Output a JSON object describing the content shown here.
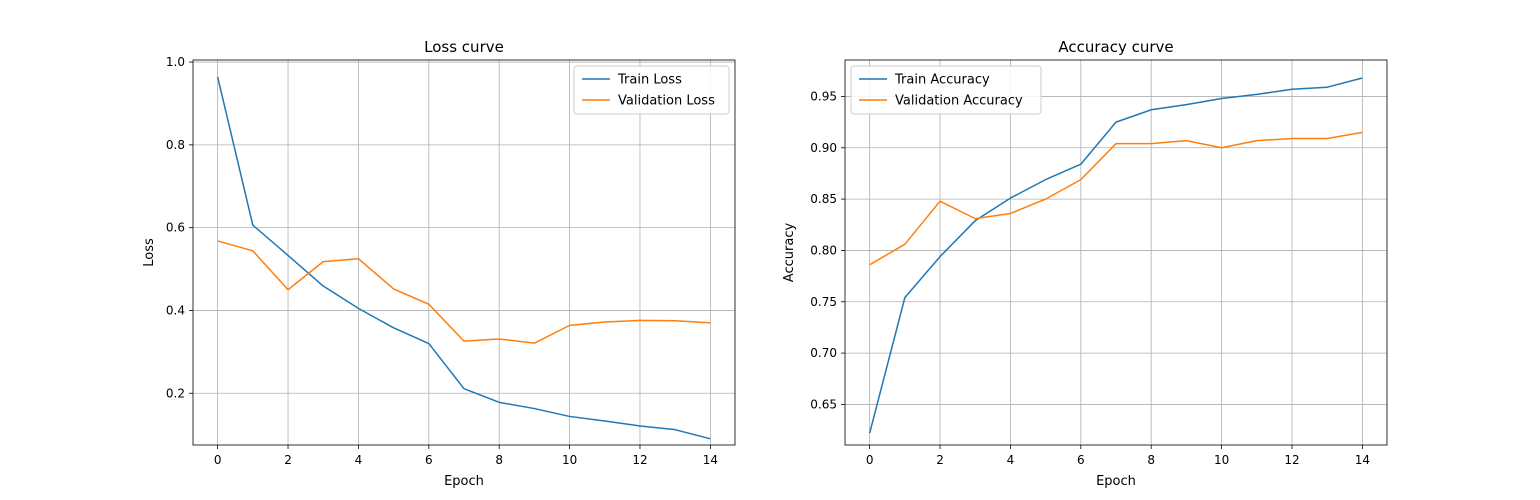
{
  "chart_data": [
    {
      "type": "line",
      "title": "Loss curve",
      "xlabel": "Epoch",
      "ylabel": "Loss",
      "x": [
        0,
        1,
        2,
        3,
        4,
        5,
        6,
        7,
        8,
        9,
        10,
        11,
        12,
        13,
        14
      ],
      "xlim": [
        -0.7,
        14.7
      ],
      "ylim": [
        0.075,
        1.005
      ],
      "xticks": [
        0,
        2,
        4,
        6,
        8,
        10,
        12,
        14
      ],
      "yticks": [
        0.2,
        0.4,
        0.6,
        0.8,
        1.0
      ],
      "ytick_labels": [
        "0.2",
        "0.4",
        "0.6",
        "0.8",
        "1.0"
      ],
      "grid": true,
      "legend_position": "top-right",
      "series": [
        {
          "name": "Train Loss",
          "color": "#1f77b4",
          "values": [
            0.964,
            0.606,
            0.533,
            0.459,
            0.405,
            0.358,
            0.32,
            0.211,
            0.178,
            0.163,
            0.144,
            0.133,
            0.121,
            0.112,
            0.09
          ]
        },
        {
          "name": "Validation Loss",
          "color": "#ff7f0e",
          "values": [
            0.568,
            0.544,
            0.45,
            0.518,
            0.525,
            0.452,
            0.415,
            0.326,
            0.331,
            0.321,
            0.364,
            0.372,
            0.376,
            0.375,
            0.37
          ]
        }
      ]
    },
    {
      "type": "line",
      "title": "Accuracy curve",
      "xlabel": "Epoch",
      "ylabel": "Accuracy",
      "x": [
        0,
        1,
        2,
        3,
        4,
        5,
        6,
        7,
        8,
        9,
        10,
        11,
        12,
        13,
        14
      ],
      "xlim": [
        -0.7,
        14.7
      ],
      "ylim": [
        0.6105,
        0.9855
      ],
      "xticks": [
        0,
        2,
        4,
        6,
        8,
        10,
        12,
        14
      ],
      "yticks": [
        0.65,
        0.7,
        0.75,
        0.8,
        0.85,
        0.9,
        0.95
      ],
      "ytick_labels": [
        "0.65",
        "0.70",
        "0.75",
        "0.80",
        "0.85",
        "0.90",
        "0.95"
      ],
      "grid": true,
      "legend_position": "top-left",
      "series": [
        {
          "name": "Train Accuracy",
          "color": "#1f77b4",
          "values": [
            0.622,
            0.754,
            0.794,
            0.829,
            0.851,
            0.869,
            0.884,
            0.925,
            0.937,
            0.942,
            0.948,
            0.952,
            0.957,
            0.959,
            0.968
          ]
        },
        {
          "name": "Validation Accuracy",
          "color": "#ff7f0e",
          "values": [
            0.786,
            0.806,
            0.848,
            0.831,
            0.836,
            0.85,
            0.869,
            0.904,
            0.904,
            0.907,
            0.9,
            0.907,
            0.909,
            0.909,
            0.915
          ]
        }
      ]
    }
  ]
}
